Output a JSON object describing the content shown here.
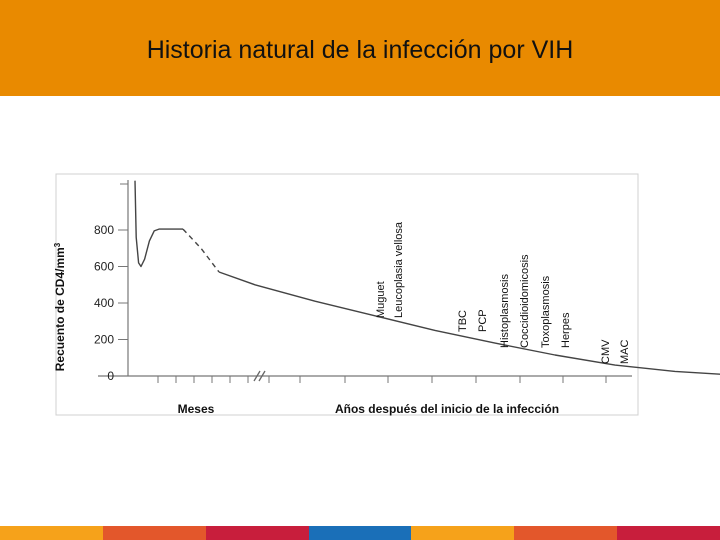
{
  "slide": {
    "title": "Historia natural de la infección por VIH",
    "header_color": "#e98a00",
    "footer_colors": [
      "#f6a21a",
      "#e3572b",
      "#c81e3c",
      "#1a6fb8",
      "#f6a21a",
      "#e3572b",
      "#c81e3c"
    ]
  },
  "chart_data": {
    "type": "line",
    "title": "",
    "ylabel": "Recuento de CD4/mm³",
    "ylabel_main": "Recuento de CD4/mm",
    "ylabel_sup": "3",
    "xlabel_left": "Meses",
    "xlabel_right": "Años después del inicio de la infección",
    "ylim": [
      0,
      1100
    ],
    "yticks": [
      0,
      200,
      400,
      600,
      800
    ],
    "grid": false,
    "series": [
      {
        "name": "",
        "segments": [
          {
            "style": "solid",
            "points": [
              [
                0.0,
                1070
              ],
              [
                0.02,
                760
              ],
              [
                0.06,
                620
              ],
              [
                0.1,
                600
              ],
              [
                0.16,
                640
              ],
              [
                0.24,
                740
              ],
              [
                0.32,
                795
              ],
              [
                0.4,
                805
              ],
              [
                0.6,
                805
              ],
              [
                0.8,
                805
              ]
            ]
          },
          {
            "style": "dashed",
            "points": [
              [
                0.8,
                805
              ],
              [
                1.1,
                700
              ],
              [
                1.4,
                570
              ]
            ]
          },
          {
            "style": "solid",
            "points": [
              [
                1.4,
                570
              ],
              [
                2.0,
                500
              ],
              [
                3.0,
                410
              ],
              [
                4.0,
                330
              ],
              [
                5.0,
                250
              ],
              [
                6.0,
                180
              ],
              [
                7.0,
                115
              ],
              [
                8.0,
                60
              ],
              [
                9.0,
                25
              ],
              [
                10.0,
                5
              ]
            ]
          }
        ]
      }
    ],
    "annotations": [
      {
        "lines": [
          "Muguet",
          "Leucoplasia vellosa"
        ]
      },
      {
        "lines": [
          "TBC",
          "PCP"
        ]
      },
      {
        "lines": [
          "Histoplasmosis",
          "Coccidioidomicosis",
          "Toxoplasmosis",
          "Herpes"
        ]
      },
      {
        "lines": [
          "CMV",
          "MAC"
        ]
      }
    ]
  }
}
